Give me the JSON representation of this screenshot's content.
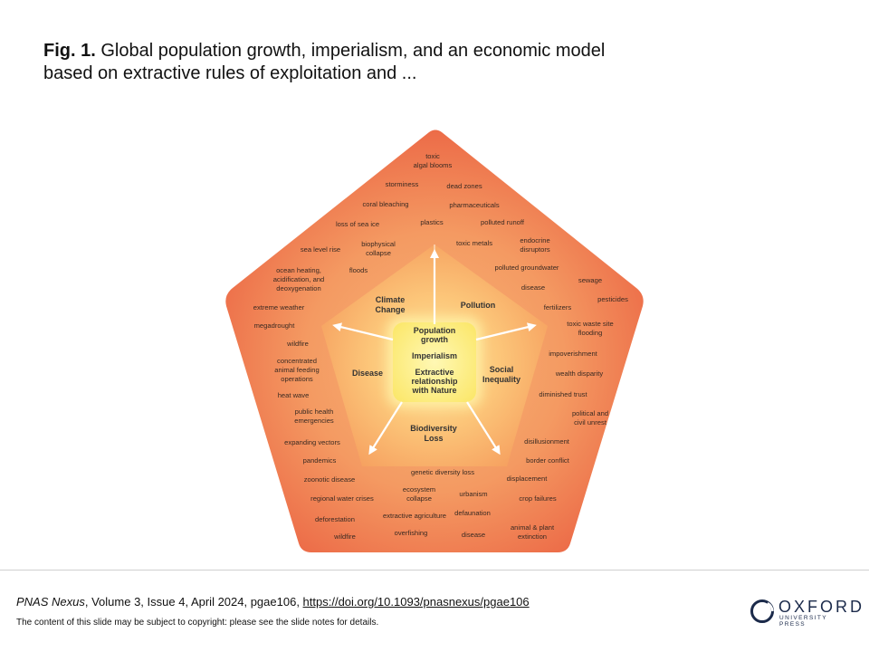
{
  "caption": {
    "fig_label": "Fig. 1.",
    "text": "Global population growth, imperialism, and an economic model based on extractive rules of exploitation and ..."
  },
  "diagram": {
    "center": [
      "Population",
      "growth",
      "Imperialism",
      "Extractive",
      "relationship",
      "with Nature"
    ],
    "domains": {
      "climate": [
        "Climate",
        "Change"
      ],
      "pollution": [
        "Pollution"
      ],
      "social": [
        "Social",
        "Inequality"
      ],
      "biodiversity": [
        "Biodiversity",
        "Loss"
      ],
      "disease": [
        "Disease"
      ]
    },
    "outer_labels": [
      [
        "toxic",
        "algal blooms"
      ],
      [
        "storminess"
      ],
      [
        "dead zones"
      ],
      [
        "coral bleaching"
      ],
      [
        "pharmaceuticals"
      ],
      [
        "loss of sea ice"
      ],
      [
        "plastics"
      ],
      [
        "polluted runoff"
      ],
      [
        "sea level rise"
      ],
      [
        "biophysical",
        "collapse"
      ],
      [
        "toxic metals"
      ],
      [
        "endocrine",
        "disruptors"
      ],
      [
        "floods"
      ],
      [
        "polluted groundwater"
      ],
      [
        "ocean heating,",
        "acidification, and",
        "deoxygenation"
      ],
      [
        "sewage"
      ],
      [
        "disease"
      ],
      [
        "pesticides"
      ],
      [
        "extreme weather"
      ],
      [
        "fertilizers"
      ],
      [
        "megadrought"
      ],
      [
        "toxic waste site",
        "flooding"
      ],
      [
        "wildfire"
      ],
      [
        "impoverishment"
      ],
      [
        "concentrated",
        "animal feeding",
        "operations"
      ],
      [
        "wealth disparity"
      ],
      [
        "heat wave"
      ],
      [
        "diminished trust"
      ],
      [
        "public health",
        "emergencies"
      ],
      [
        "political and",
        "civil unrest"
      ],
      [
        "expanding vectors"
      ],
      [
        "disillusionment"
      ],
      [
        "pandemics"
      ],
      [
        "border conflict"
      ],
      [
        "genetic diversity loss"
      ],
      [
        "zoonotic disease"
      ],
      [
        "displacement"
      ],
      [
        "ecosystem",
        "collapse"
      ],
      [
        "urbanism"
      ],
      [
        "regional water crises"
      ],
      [
        "crop failures"
      ],
      [
        "deforestation"
      ],
      [
        "extractive agriculture"
      ],
      [
        "defaunation"
      ],
      [
        "animal & plant",
        "extinction"
      ],
      [
        "wildfire"
      ],
      [
        "overfishing"
      ],
      [
        "disease"
      ]
    ]
  },
  "footer": {
    "journal": "PNAS Nexus",
    "citation_rest": ", Volume 3, Issue 4, April 2024, pgae106, ",
    "doi": "https://doi.org/10.1093/pnasnexus/pgae106",
    "copyright": "The content of this slide may be subject to copyright: please see the slide notes for details.",
    "logo_word": "OXFORD",
    "logo_sub": "UNIVERSITY PRESS"
  }
}
